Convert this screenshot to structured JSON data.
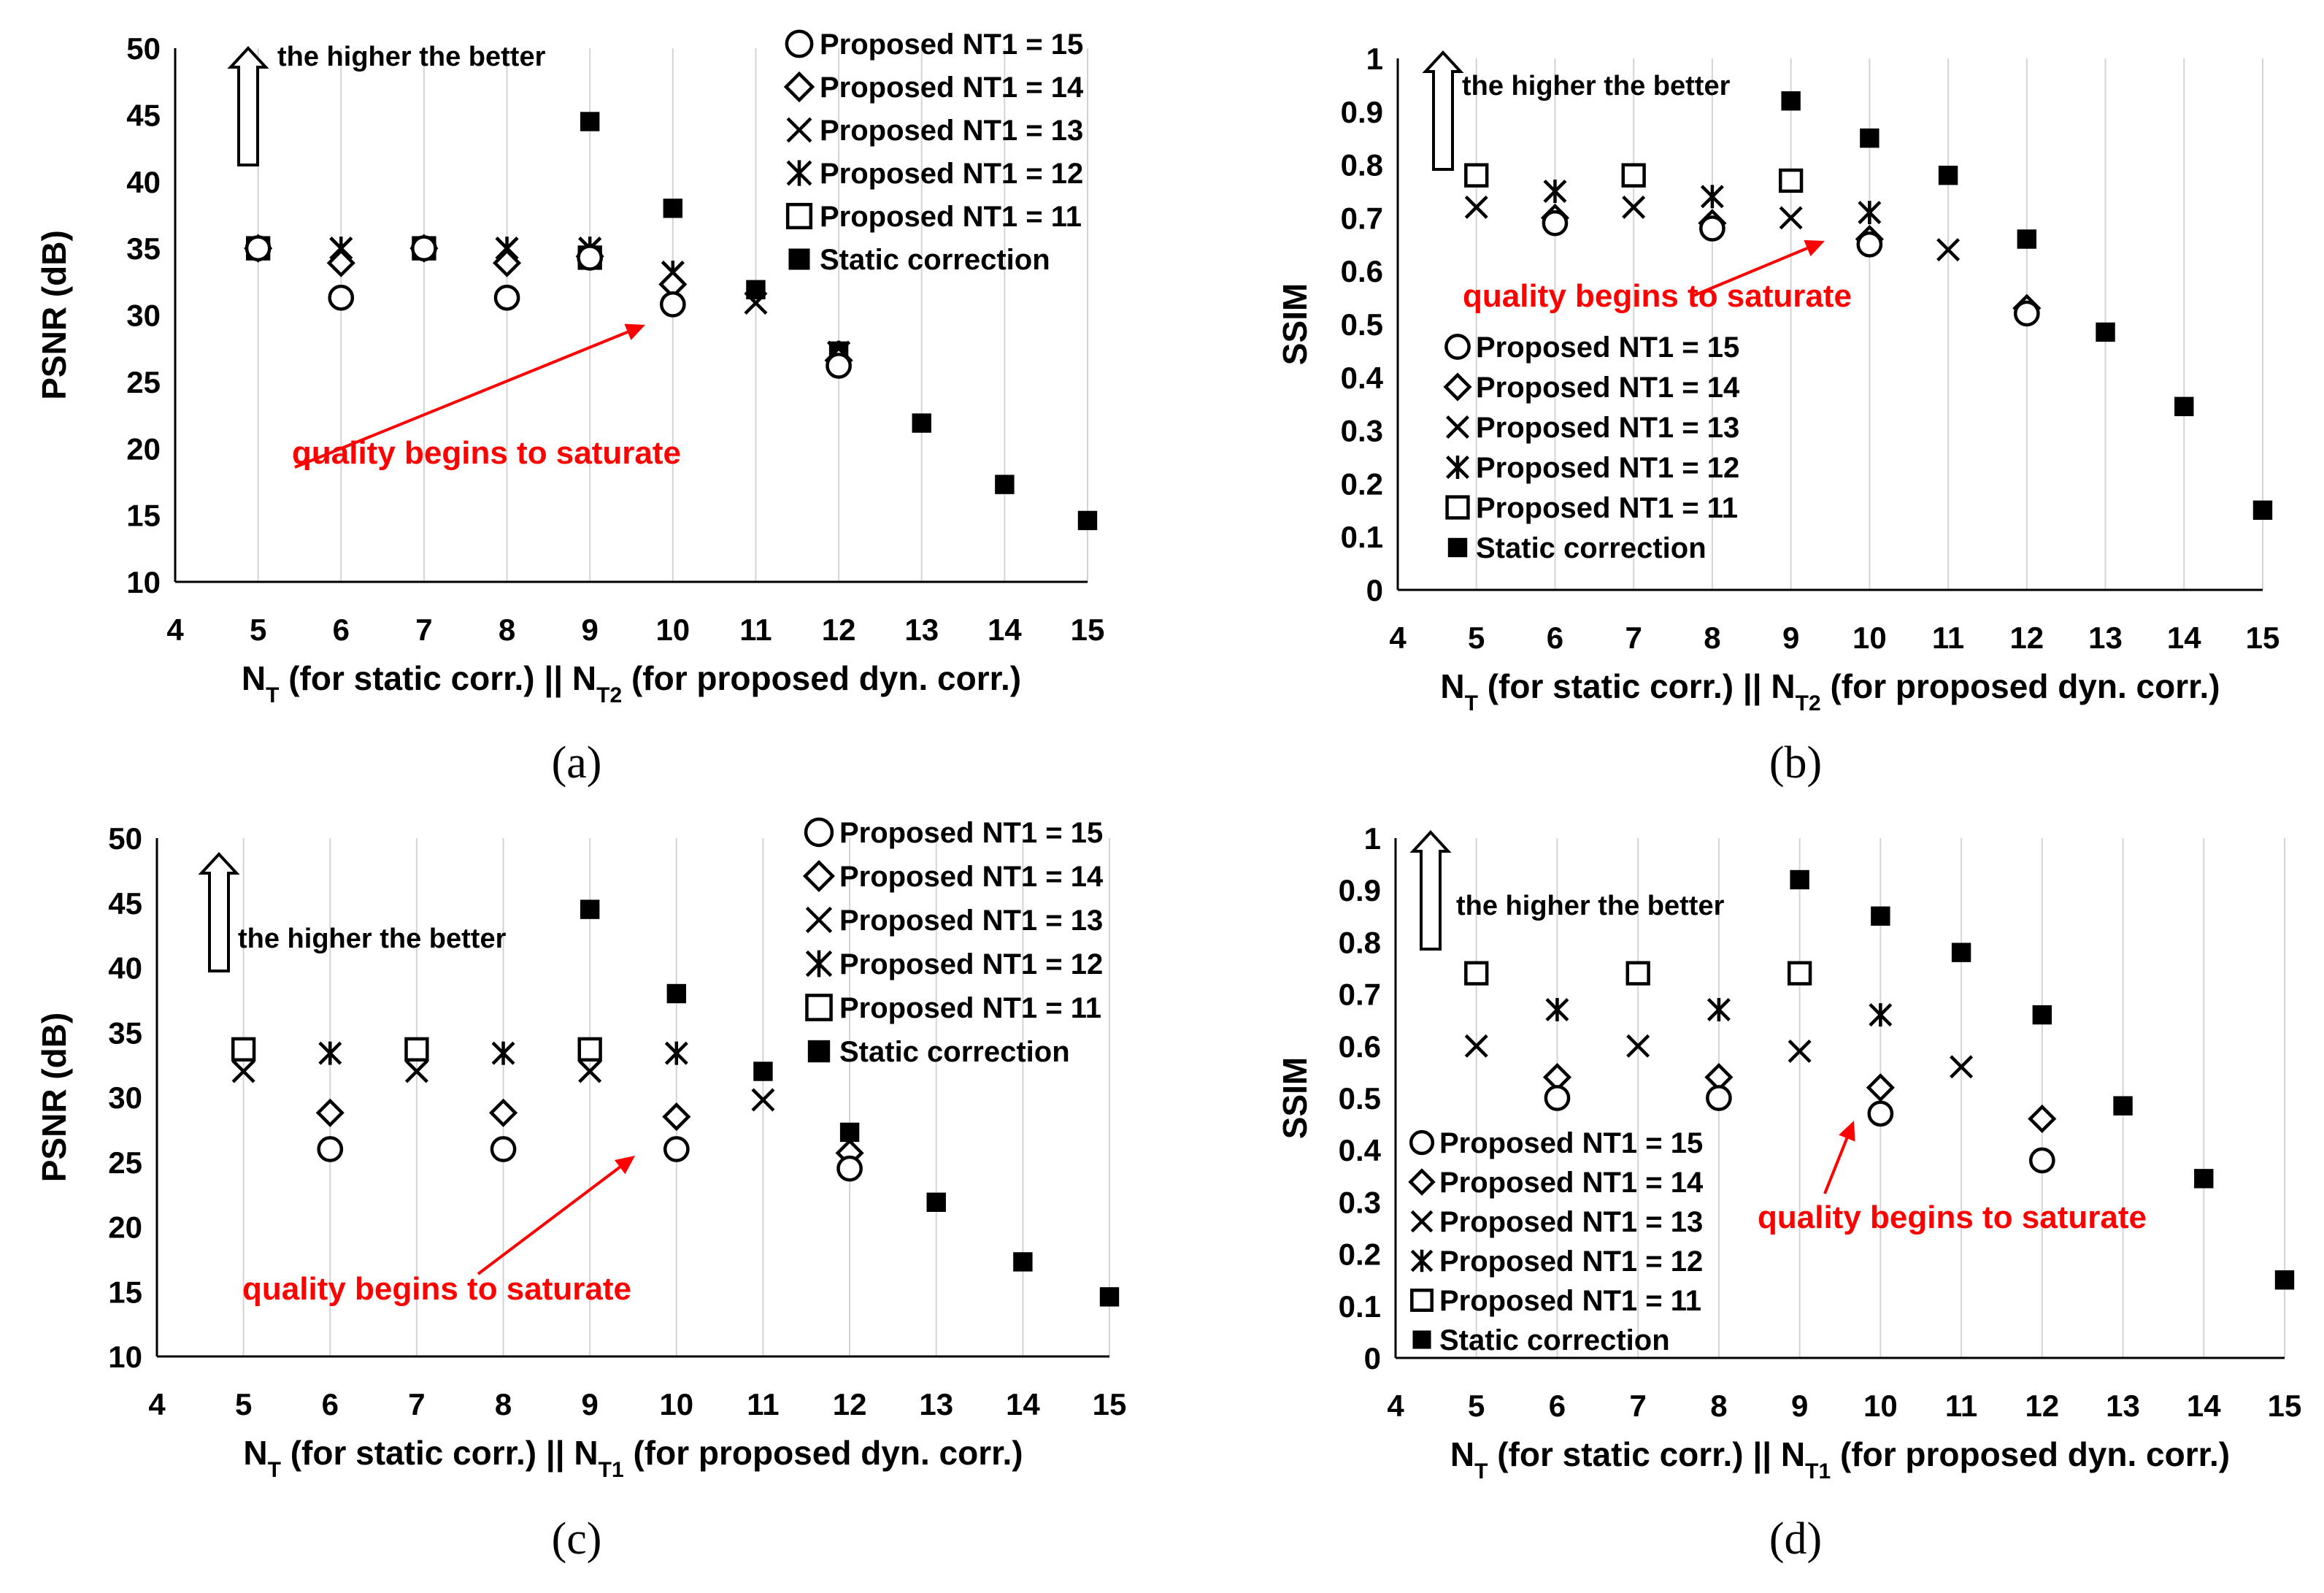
{
  "chart_data": [
    {
      "type": "scatter",
      "panel": "(a)",
      "ylabel": "PSNR (dB)",
      "xlabel_parts": [
        "N",
        "T",
        " (for static corr.) || N",
        "T2",
        " (for proposed dyn. corr.)"
      ],
      "xlim": [
        4,
        15
      ],
      "ylim": [
        10,
        50
      ],
      "xticks": [
        4,
        5,
        6,
        7,
        8,
        9,
        10,
        11,
        12,
        13,
        14,
        15
      ],
      "yticks": [
        10,
        15,
        20,
        25,
        30,
        35,
        40,
        45,
        50
      ],
      "annotation_text": "the higher the better",
      "saturate_text": "quality begins to saturate",
      "legend_position": "top-right",
      "series": [
        {
          "name": "Proposed NT1 = 15",
          "marker": "circle",
          "x": [
            5,
            6,
            7,
            8,
            9,
            10,
            12
          ],
          "y": [
            35,
            31.3,
            35,
            31.3,
            34.3,
            30.8,
            26.2
          ]
        },
        {
          "name": "Proposed NT1 = 14",
          "marker": "diamond",
          "x": [
            5,
            6,
            7,
            8,
            9,
            10,
            12
          ],
          "y": [
            35,
            33.9,
            35,
            33.9,
            34.4,
            32.3,
            26.6
          ]
        },
        {
          "name": "Proposed NT1 = 13",
          "marker": "x",
          "x": [
            5,
            6,
            7,
            8,
            9,
            10,
            11,
            12
          ],
          "y": [
            35,
            35,
            35,
            35,
            35,
            33.2,
            30.9,
            27.2
          ]
        },
        {
          "name": "Proposed NT1 = 12",
          "marker": "star",
          "x": [
            5,
            6,
            7,
            8,
            9,
            10,
            12
          ],
          "y": [
            35,
            35,
            35,
            35,
            35,
            33.2,
            27.2
          ]
        },
        {
          "name": "Proposed NT1 = 11",
          "marker": "square",
          "x": [
            5,
            7,
            9
          ],
          "y": [
            35,
            35,
            34.3
          ]
        },
        {
          "name": "Static correction",
          "marker": "filled-square",
          "x": [
            5,
            7,
            9,
            10,
            11,
            12,
            13,
            14,
            15
          ],
          "y": [
            35,
            35,
            44.5,
            38,
            31.9,
            27.3,
            21.9,
            17.3,
            14.6
          ]
        }
      ]
    },
    {
      "type": "scatter",
      "panel": "(b)",
      "ylabel": "SSIM",
      "xlabel_parts": [
        "N",
        "T",
        " (for static corr.) || N",
        "T2",
        " (for proposed dyn. corr.)"
      ],
      "xlim": [
        4,
        15
      ],
      "ylim": [
        0,
        1
      ],
      "xticks": [
        4,
        5,
        6,
        7,
        8,
        9,
        10,
        11,
        12,
        13,
        14,
        15
      ],
      "yticks": [
        0,
        0.1,
        0.2,
        0.3,
        0.4,
        0.5,
        0.6,
        0.7,
        0.8,
        0.9,
        1
      ],
      "annotation_text": "the higher the better",
      "saturate_text": "quality begins to saturate",
      "legend_position": "left",
      "series": [
        {
          "name": "Proposed NT1 = 15",
          "marker": "circle",
          "x": [
            6,
            8,
            10,
            12
          ],
          "y": [
            0.69,
            0.68,
            0.65,
            0.52
          ]
        },
        {
          "name": "Proposed NT1 = 14",
          "marker": "diamond",
          "x": [
            6,
            8,
            10,
            12
          ],
          "y": [
            0.7,
            0.69,
            0.66,
            0.53
          ]
        },
        {
          "name": "Proposed NT1 = 13",
          "marker": "x",
          "x": [
            5,
            7,
            9,
            11
          ],
          "y": [
            0.72,
            0.72,
            0.7,
            0.64
          ]
        },
        {
          "name": "Proposed NT1 = 12",
          "marker": "star",
          "x": [
            6,
            8,
            10
          ],
          "y": [
            0.75,
            0.74,
            0.71
          ]
        },
        {
          "name": "Proposed NT1 = 11",
          "marker": "square",
          "x": [
            5,
            7,
            9
          ],
          "y": [
            0.78,
            0.78,
            0.77
          ]
        },
        {
          "name": "Static correction",
          "marker": "filled-square",
          "x": [
            9,
            10,
            11,
            12,
            13,
            14,
            15
          ],
          "y": [
            0.92,
            0.85,
            0.78,
            0.66,
            0.485,
            0.345,
            0.15
          ]
        }
      ]
    },
    {
      "type": "scatter",
      "panel": "(c)",
      "ylabel": "PSNR (dB)",
      "xlabel_parts": [
        "N",
        "T",
        " (for static corr.) || N",
        "T1",
        " (for proposed dyn. corr.)"
      ],
      "xlim": [
        4,
        15
      ],
      "ylim": [
        10,
        50
      ],
      "xticks": [
        4,
        5,
        6,
        7,
        8,
        9,
        10,
        11,
        12,
        13,
        14,
        15
      ],
      "yticks": [
        10,
        15,
        20,
        25,
        30,
        35,
        40,
        45,
        50
      ],
      "annotation_text": "the higher the better",
      "saturate_text": "quality begins to saturate",
      "legend_position": "top-right",
      "series": [
        {
          "name": "Proposed NT1 = 15",
          "marker": "circle",
          "x": [
            6,
            8,
            10,
            12
          ],
          "y": [
            26,
            26,
            26,
            24.5
          ]
        },
        {
          "name": "Proposed NT1 = 14",
          "marker": "diamond",
          "x": [
            6,
            8,
            10,
            12
          ],
          "y": [
            28.8,
            28.8,
            28.5,
            25.7
          ]
        },
        {
          "name": "Proposed NT1 = 13",
          "marker": "x",
          "x": [
            5,
            7,
            9,
            11
          ],
          "y": [
            32,
            32,
            32,
            29.8
          ]
        },
        {
          "name": "Proposed NT1 = 12",
          "marker": "star",
          "x": [
            6,
            8,
            10
          ],
          "y": [
            33.4,
            33.4,
            33.4
          ]
        },
        {
          "name": "Proposed NT1 = 11",
          "marker": "square",
          "x": [
            5,
            7,
            9
          ],
          "y": [
            33.7,
            33.7,
            33.7
          ]
        },
        {
          "name": "Static correction",
          "marker": "filled-square",
          "x": [
            9,
            10,
            11,
            12,
            13,
            14,
            15
          ],
          "y": [
            44.5,
            38,
            32,
            27.3,
            21.9,
            17.3,
            14.6
          ]
        }
      ]
    },
    {
      "type": "scatter",
      "panel": "(d)",
      "ylabel": "SSIM",
      "xlabel_parts": [
        "N",
        "T",
        " (for static corr.) || N",
        "T1",
        " (for proposed dyn. corr.)"
      ],
      "xlim": [
        4,
        15
      ],
      "ylim": [
        0,
        1
      ],
      "xticks": [
        4,
        5,
        6,
        7,
        8,
        9,
        10,
        11,
        12,
        13,
        14,
        15
      ],
      "yticks": [
        0,
        0.1,
        0.2,
        0.3,
        0.4,
        0.5,
        0.6,
        0.7,
        0.8,
        0.9,
        1
      ],
      "annotation_text": "the higher the better",
      "saturate_text": "quality begins to saturate",
      "legend_position": "bottom-left",
      "series": [
        {
          "name": "Proposed NT1 = 15",
          "marker": "circle",
          "x": [
            6,
            8,
            10,
            12
          ],
          "y": [
            0.5,
            0.5,
            0.47,
            0.38
          ]
        },
        {
          "name": "Proposed NT1 = 14",
          "marker": "diamond",
          "x": [
            6,
            8,
            10,
            12
          ],
          "y": [
            0.54,
            0.54,
            0.52,
            0.46
          ]
        },
        {
          "name": "Proposed NT1 = 13",
          "marker": "x",
          "x": [
            5,
            7,
            9,
            11
          ],
          "y": [
            0.6,
            0.6,
            0.59,
            0.56
          ]
        },
        {
          "name": "Proposed NT1 = 12",
          "marker": "star",
          "x": [
            6,
            8,
            10
          ],
          "y": [
            0.67,
            0.67,
            0.66
          ]
        },
        {
          "name": "Proposed NT1 = 11",
          "marker": "square",
          "x": [
            5,
            7,
            9
          ],
          "y": [
            0.74,
            0.74,
            0.74
          ]
        },
        {
          "name": "Static correction",
          "marker": "filled-square",
          "x": [
            9,
            10,
            11,
            12,
            13,
            14,
            15
          ],
          "y": [
            0.92,
            0.85,
            0.78,
            0.66,
            0.485,
            0.345,
            0.15
          ]
        }
      ]
    }
  ]
}
